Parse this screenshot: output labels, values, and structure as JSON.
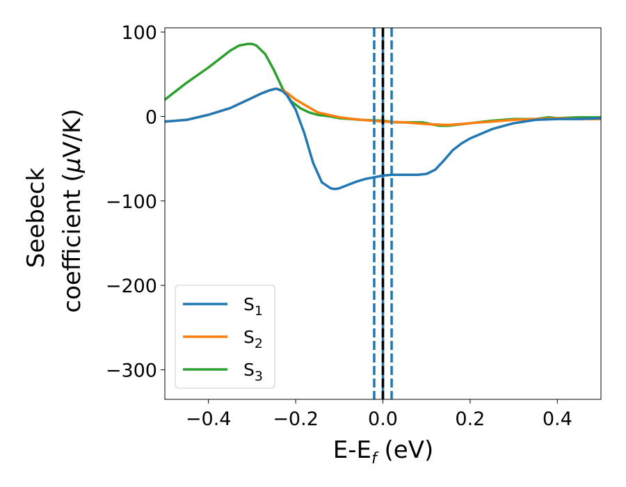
{
  "chart_data": {
    "type": "line",
    "xlabel": "E-E",
    "xlabel_sub": "f",
    "xlabel_unit": " (eV)",
    "ylabel_line1": "Seebeck",
    "ylabel_line2": "coefficient  (",
    "ylabel_mu": "μ",
    "ylabel_unit": "V/K)",
    "xlim": [
      -0.5,
      0.5
    ],
    "ylim": [
      -335,
      105
    ],
    "xticks": [
      -0.4,
      -0.2,
      0.0,
      0.2,
      0.4
    ],
    "xtick_labels": [
      "−0.4",
      "−0.2",
      "0.0",
      "0.2",
      "0.4"
    ],
    "yticks": [
      100,
      0,
      -100,
      -200,
      -300
    ],
    "ytick_labels": [
      "100",
      "0",
      "−100",
      "−200",
      "−300"
    ],
    "grid": false,
    "legend_position": "lower-left",
    "series": [
      {
        "name": "S",
        "name_sub": "1",
        "color": "#1f77b4",
        "x": [
          -0.5,
          -0.45,
          -0.4,
          -0.35,
          -0.3,
          -0.28,
          -0.26,
          -0.245,
          -0.23,
          -0.22,
          -0.2,
          -0.18,
          -0.16,
          -0.14,
          -0.12,
          -0.11,
          -0.1,
          -0.08,
          -0.06,
          -0.04,
          -0.02,
          0.0,
          0.02,
          0.04,
          0.06,
          0.08,
          0.1,
          0.12,
          0.14,
          0.16,
          0.18,
          0.2,
          0.25,
          0.3,
          0.35,
          0.4,
          0.45,
          0.5
        ],
        "y": [
          -6,
          -4,
          2,
          10,
          22,
          27,
          31,
          33,
          30,
          25,
          8,
          -20,
          -55,
          -78,
          -85,
          -86,
          -85,
          -81,
          -77,
          -74,
          -72,
          -70,
          -69,
          -69,
          -69,
          -69,
          -68,
          -63,
          -52,
          -40,
          -32,
          -26,
          -15,
          -8,
          -4,
          -3,
          -3,
          -2
        ]
      },
      {
        "name": "S",
        "name_sub": "2",
        "color": "#ff7f0e",
        "x": [
          -0.5,
          -0.45,
          -0.4,
          -0.35,
          -0.3,
          -0.28,
          -0.26,
          -0.245,
          -0.23,
          -0.22,
          -0.2,
          -0.15,
          -0.1,
          -0.05,
          0.0,
          0.05,
          0.1,
          0.15,
          0.2,
          0.25,
          0.3,
          0.35,
          0.4,
          0.45,
          0.5
        ],
        "y": [
          -6,
          -4,
          2,
          10,
          22,
          27,
          31,
          33,
          31,
          28,
          20,
          5,
          -1,
          -4,
          -6,
          -7,
          -9,
          -10,
          -8,
          -6,
          -4,
          -3,
          -2,
          -3,
          -3
        ]
      },
      {
        "name": "S",
        "name_sub": "3",
        "color": "#2ca02c",
        "x": [
          -0.5,
          -0.45,
          -0.4,
          -0.35,
          -0.33,
          -0.31,
          -0.3,
          -0.29,
          -0.27,
          -0.25,
          -0.23,
          -0.21,
          -0.19,
          -0.17,
          -0.15,
          -0.12,
          -0.1,
          -0.05,
          0.0,
          0.03,
          0.06,
          0.09,
          0.11,
          0.13,
          0.15,
          0.2,
          0.25,
          0.3,
          0.35,
          0.38,
          0.4,
          0.45,
          0.5
        ],
        "y": [
          20,
          40,
          58,
          78,
          84,
          86,
          86,
          84,
          74,
          55,
          33,
          18,
          10,
          5,
          2,
          0,
          -2,
          -4,
          -5,
          -7,
          -7,
          -7,
          -9,
          -11,
          -11,
          -8,
          -5,
          -3,
          -3,
          -1,
          -2,
          -1,
          -1
        ]
      }
    ],
    "vlines": [
      {
        "x": -0.02,
        "color": "#1f77b4",
        "style": "dashed"
      },
      {
        "x": 0.02,
        "color": "#1f77b4",
        "style": "dashed"
      },
      {
        "x": 0.0,
        "color": "#000000",
        "style": "dashed"
      }
    ]
  }
}
